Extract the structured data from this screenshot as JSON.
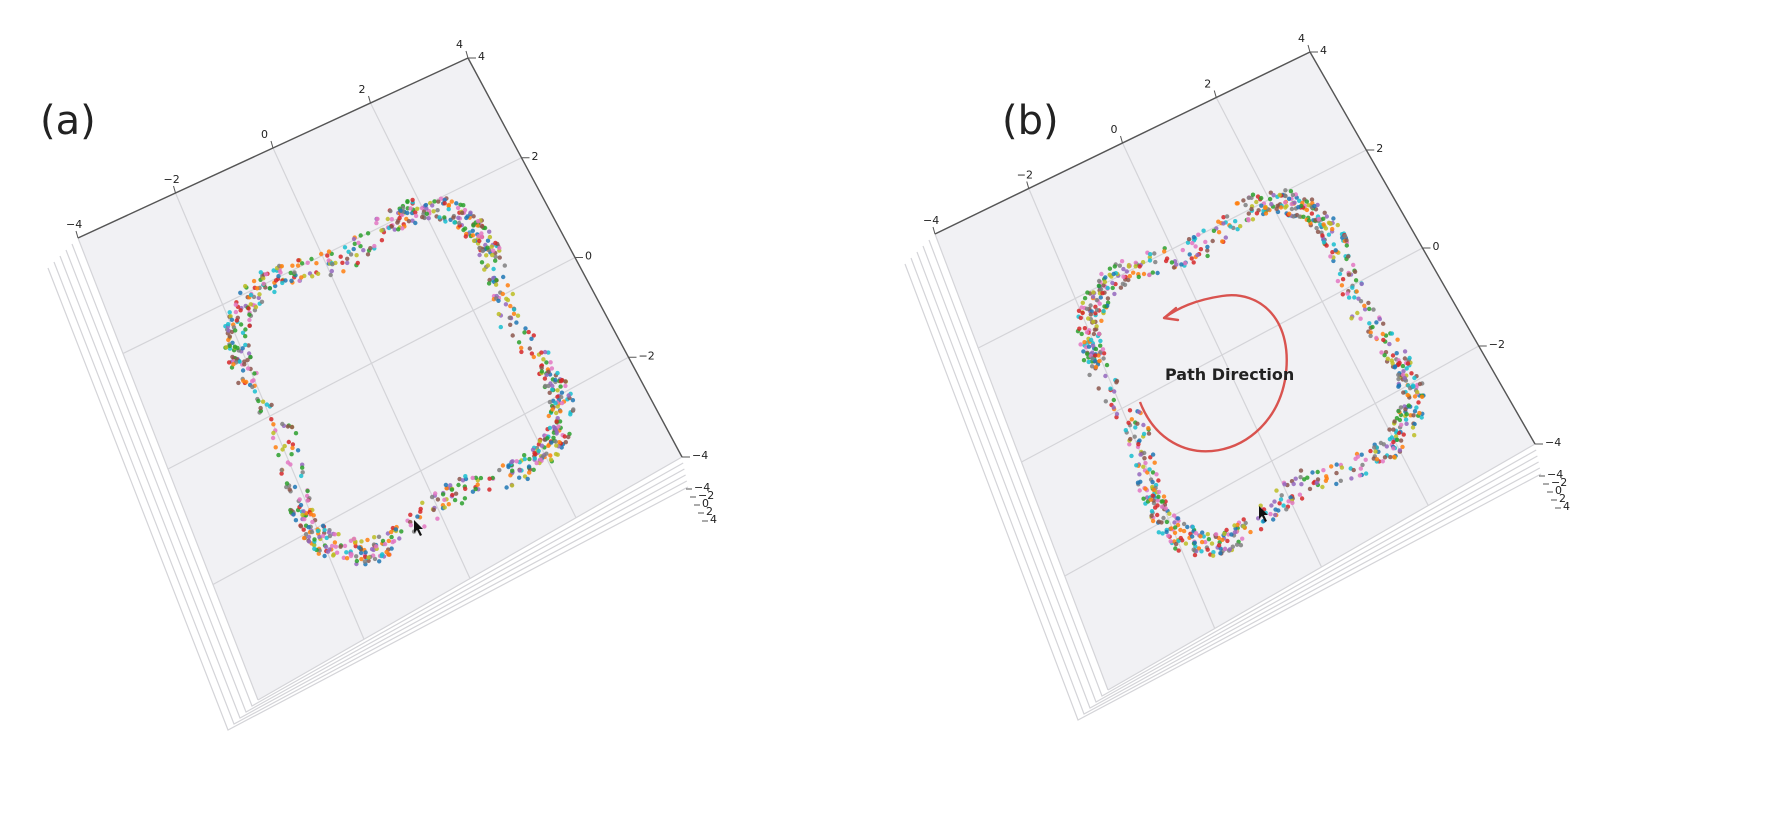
{
  "panels": [
    {
      "label": "(a)",
      "annotation": ""
    },
    {
      "label": "(b)",
      "annotation": "Path Direction"
    }
  ],
  "colors": {
    "pane": "#f1f1f4",
    "grid": "#d4d4d8",
    "axis": "#555555",
    "arrow": "#d9534f",
    "palette": [
      "#1f77b4",
      "#ff7f0e",
      "#2ca02c",
      "#d62728",
      "#9467bd",
      "#8c564b",
      "#e377c2",
      "#7f7f7f",
      "#bcbd22",
      "#17becf"
    ]
  },
  "chart_data": [
    {
      "type": "scatter",
      "projection": "3d",
      "title": "",
      "x_ticks": [
        "−4",
        "−2",
        "0",
        "2",
        "4"
      ],
      "y_ticks": [
        "4",
        "2",
        "0",
        "−2",
        "−4"
      ],
      "z_ticks": [
        "−4",
        "−2",
        "0",
        "2",
        "4"
      ],
      "xlim": [
        -4,
        4
      ],
      "ylim": [
        -4,
        4
      ],
      "zlim": [
        -4,
        4
      ],
      "grid": true,
      "shape": "ring",
      "ring_center": [
        0.3,
        -0.4
      ],
      "ring_radius": 2.2,
      "point_count": 900,
      "annotation": null
    },
    {
      "type": "scatter",
      "projection": "3d",
      "title": "",
      "x_ticks": [
        "−4",
        "−2",
        "0",
        "2",
        "4"
      ],
      "y_ticks": [
        "4",
        "2",
        "0",
        "−2",
        "−4"
      ],
      "z_ticks": [
        "−4",
        "−2",
        "0",
        "2",
        "4"
      ],
      "xlim": [
        -4,
        4
      ],
      "ylim": [
        -4,
        4
      ],
      "zlim": [
        -4,
        4
      ],
      "grid": true,
      "shape": "ring",
      "ring_center": [
        0.3,
        -0.4
      ],
      "ring_radius": 2.2,
      "point_count": 900,
      "annotation": {
        "text": "Path Direction",
        "direction": "counter-clockwise"
      }
    }
  ]
}
